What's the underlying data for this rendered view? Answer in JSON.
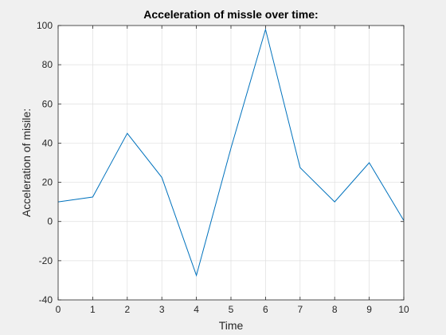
{
  "chart_data": {
    "type": "line",
    "title": "Acceleration of missle over time:",
    "xlabel": "Time",
    "ylabel": "Acceleration of misile:",
    "xlim": [
      0,
      10
    ],
    "ylim": [
      -40,
      100
    ],
    "xticks": [
      0,
      1,
      2,
      3,
      4,
      5,
      6,
      7,
      8,
      9,
      10
    ],
    "yticks": [
      -40,
      -20,
      0,
      20,
      40,
      60,
      80,
      100
    ],
    "grid": true,
    "line_color": "#0072BD",
    "x": [
      0,
      1,
      2,
      3,
      4,
      5,
      6,
      7,
      8,
      9,
      10
    ],
    "series": [
      {
        "values": [
          10,
          12.5,
          45,
          22.5,
          -27.5,
          37.5,
          98,
          27.5,
          10,
          30,
          0.5
        ]
      }
    ]
  }
}
